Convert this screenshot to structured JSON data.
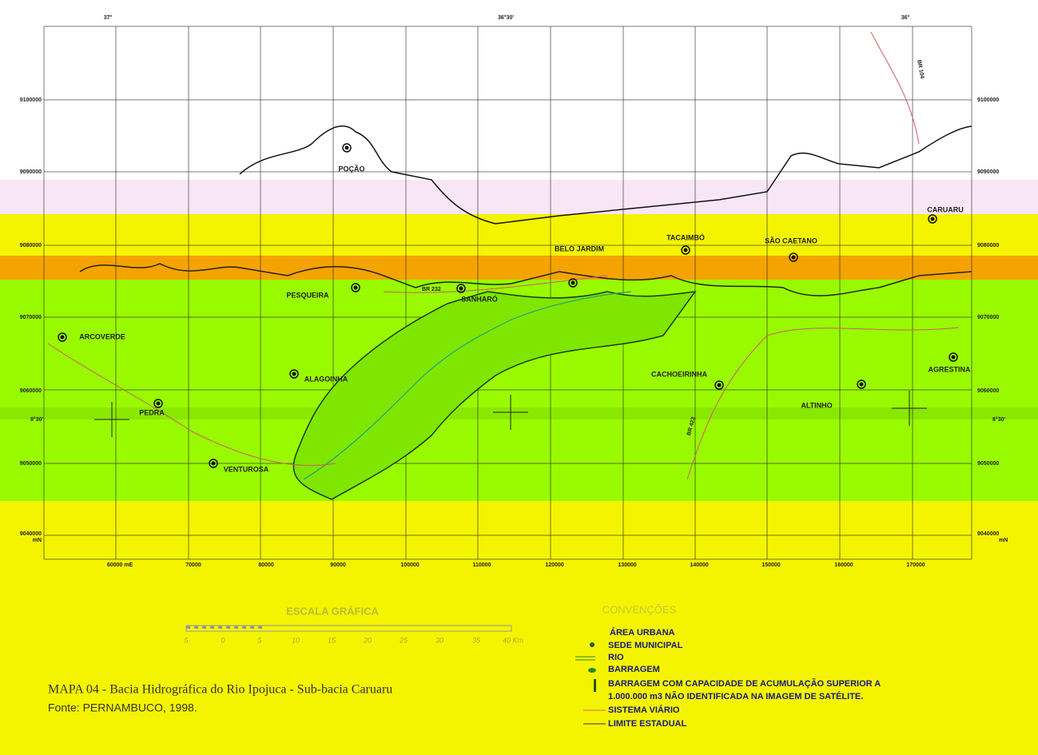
{
  "map": {
    "longitude_labels": [
      "37°",
      "36°30'",
      "36°"
    ],
    "northing_labels": [
      "9100000",
      "9090000",
      "9080000",
      "9070000",
      "9060000",
      "9050000",
      "9040000"
    ],
    "northing_unit": "mN",
    "latitude_label": "8°30'",
    "easting_labels": [
      "60000 mE",
      "70000",
      "80000",
      "90000",
      "100000",
      "110000",
      "120000",
      "130000",
      "140000",
      "150000",
      "160000",
      "170000"
    ],
    "cities": [
      "POÇÃO",
      "CARUARU",
      "BELO JARDIM",
      "TACAIMBÓ",
      "SÃO CAETANO",
      "PESQUEIRA",
      "SANHARÓ",
      "ARCOVERDE",
      "ALAGOINHA",
      "CACHOEIRINHA",
      "AGRESTINA",
      "ALTINHO",
      "PEDRA",
      "VENTUROSA"
    ],
    "road_labels": [
      "BR 232",
      "BR 104",
      "BR 423"
    ]
  },
  "scale": {
    "title": "ESCALA GRÁFICA",
    "labels": [
      "5",
      "0",
      "5",
      "10",
      "15",
      "20",
      "25",
      "30",
      "35",
      "40 Km"
    ]
  },
  "legend": {
    "title": "CONVENÇÕES",
    "items": [
      "ÁREA URBANA",
      "SEDE MUNICIPAL",
      "RIO",
      "BARRAGEM",
      "BARRAGEM COM CAPACIDADE DE ACUMULAÇÃO SUPERIOR A",
      "1.000.000 m3 NÃO IDENTIFICADA NA IMAGEM DE SATÉLITE.",
      "SISTEMA VIÁRIO",
      "LIMITE ESTADUAL"
    ]
  },
  "caption": {
    "title": "MAPA 04 - Bacia Hidrográfica do Rio Ipojuca - Sub-bacia Caruaru",
    "source": "Fonte: PERNAMBUCO, 1998."
  }
}
